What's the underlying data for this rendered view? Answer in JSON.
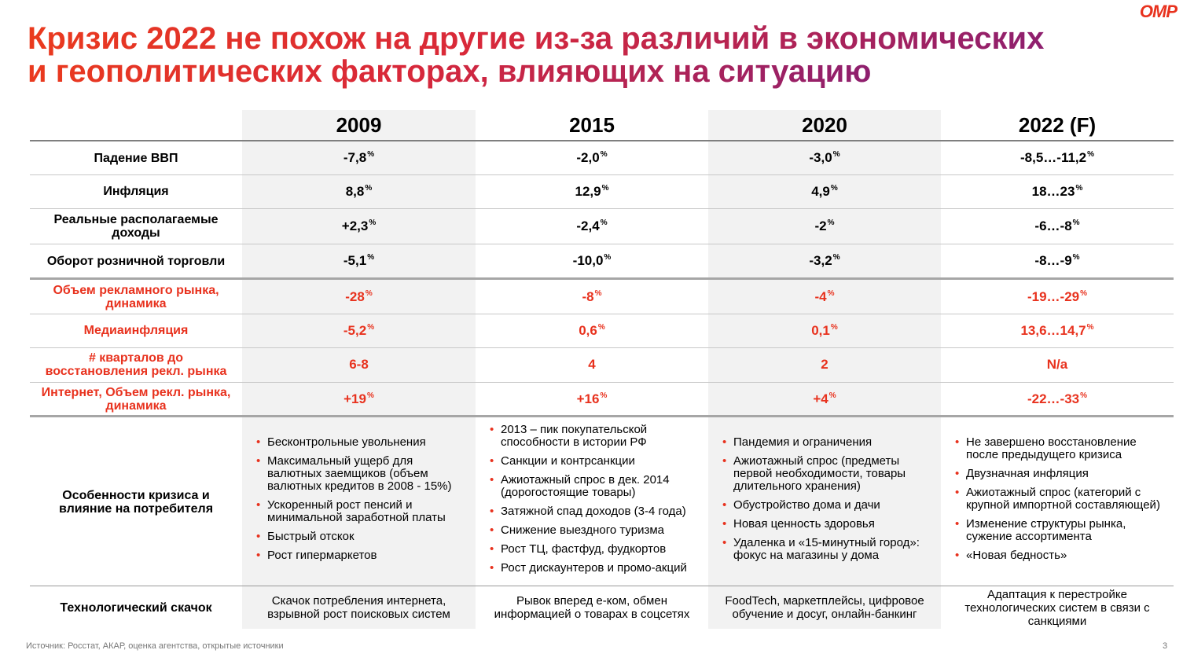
{
  "header": {
    "title_lines": [
      "Кризис 2022 не похож на другие из-за различий в экономических",
      "и геополитических факторах, влияющих на ситуацию"
    ],
    "logo": "OMP"
  },
  "table": {
    "columns": [
      "2009",
      "2015",
      "2020",
      "2022 (F)"
    ],
    "economy_rows": [
      {
        "label": "Падение ВВП",
        "cells": [
          {
            "value": "-7,8",
            "sup": "%"
          },
          {
            "value": "-2,0",
            "sup": "%"
          },
          {
            "value": "-3,0",
            "sup": "%"
          },
          {
            "value": "-8,5…-11,2",
            "sup": "%"
          }
        ]
      },
      {
        "label": "Инфляция",
        "cells": [
          {
            "value": "8,8",
            "sup": "%"
          },
          {
            "value": "12,9",
            "sup": "%"
          },
          {
            "value": "4,9",
            "sup": "%"
          },
          {
            "value": "18…23",
            "sup": "%"
          }
        ]
      },
      {
        "label": "Реальные располагаемые доходы",
        "cells": [
          {
            "value": "+2,3",
            "sup": "%"
          },
          {
            "value": "-2,4",
            "sup": "%"
          },
          {
            "value": "-2",
            "sup": "%"
          },
          {
            "value": "-6…-8",
            "sup": "%"
          }
        ]
      },
      {
        "label": "Оборот розничной торговли",
        "cells": [
          {
            "value": "-5,1",
            "sup": "%"
          },
          {
            "value": "-10,0",
            "sup": "%"
          },
          {
            "value": "-3,2",
            "sup": "%"
          },
          {
            "value": "-8…-9",
            "sup": "%"
          }
        ]
      }
    ],
    "media_rows": [
      {
        "label": "Объем рекламного рынка, динамика",
        "cells": [
          {
            "value": "-28",
            "sup": "%"
          },
          {
            "value": "-8",
            "sup": "%"
          },
          {
            "value": "-4",
            "sup": "%"
          },
          {
            "value": "-19…-29",
            "sup": "%"
          }
        ]
      },
      {
        "label": "Медиаинфляция",
        "cells": [
          {
            "value": "-5,2",
            "sup": "%"
          },
          {
            "value": "0,6",
            "sup": "%"
          },
          {
            "value": "0,1",
            "sup": "%"
          },
          {
            "value": "13,6…14,7",
            "sup": "%"
          }
        ]
      },
      {
        "label": "# кварталов до восстановления рекл. рынка",
        "cells": [
          {
            "value": "6-8"
          },
          {
            "value": "4"
          },
          {
            "value": "2"
          },
          {
            "value": "N/a"
          }
        ]
      },
      {
        "label": "Интернет, Объем рекл. рынка, динамика",
        "cells": [
          {
            "value": "+19",
            "sup": "%"
          },
          {
            "value": "+16",
            "sup": "%"
          },
          {
            "value": "+4",
            "sup": "%"
          },
          {
            "value": "-22…-33",
            "sup": "%"
          }
        ]
      }
    ],
    "features": {
      "label": "Особенности кризиса и влияние на потребителя",
      "columns": [
        [
          "Бесконтрольные увольнения",
          "Максимальный ущерб для валютных заемщиков (объем валютных кредитов в 2008 - 15%)",
          "Ускоренный рост пенсий и минимальной заработной платы",
          "Быстрый отскок",
          "Рост гипермаркетов"
        ],
        [
          "2013 – пик покупательской способности в истории РФ",
          "Санкции и контрсанкции",
          "Ажиотажный спрос в дек. 2014 (дорогостоящие товары)",
          "Затяжной спад доходов (3-4 года)",
          "Снижение выездного туризма",
          "Рост ТЦ, фастфуд, фудкортов",
          "Рост дискаунтеров и промо-акций"
        ],
        [
          "Пандемия и ограничения",
          "Ажиотажный спрос (предметы первой необходимости, товары длительного хранения)",
          "Обустройство дома и дачи",
          "Новая ценность здоровья",
          "Удаленка и «15-минутный город»: фокус на магазины у дома"
        ],
        [
          "Не завершено восстановление после предыдущего кризиса",
          "Двузначная инфляция",
          "Ажиотажный спрос (категорий с крупной импортной составляющей)",
          "Изменение структуры рынка, сужение ассортимента",
          "«Новая бедность»"
        ]
      ]
    },
    "tech": {
      "label": "Технологический скачок",
      "cells": [
        "Скачок потребления интернета, взрывной рост поисковых систем",
        "Рывок вперед е-ком, обмен информацией о товарах в соцсетях",
        "FoodTech, маркетплейсы, цифровое обучение и досуг, онлайн-банкинг",
        "Адаптация к перестройке технологических систем в связи с санкциями"
      ]
    }
  },
  "footer": {
    "source": "Источник: Росстат, АКАР, оценка агентства, открытые источники",
    "page": "3"
  }
}
